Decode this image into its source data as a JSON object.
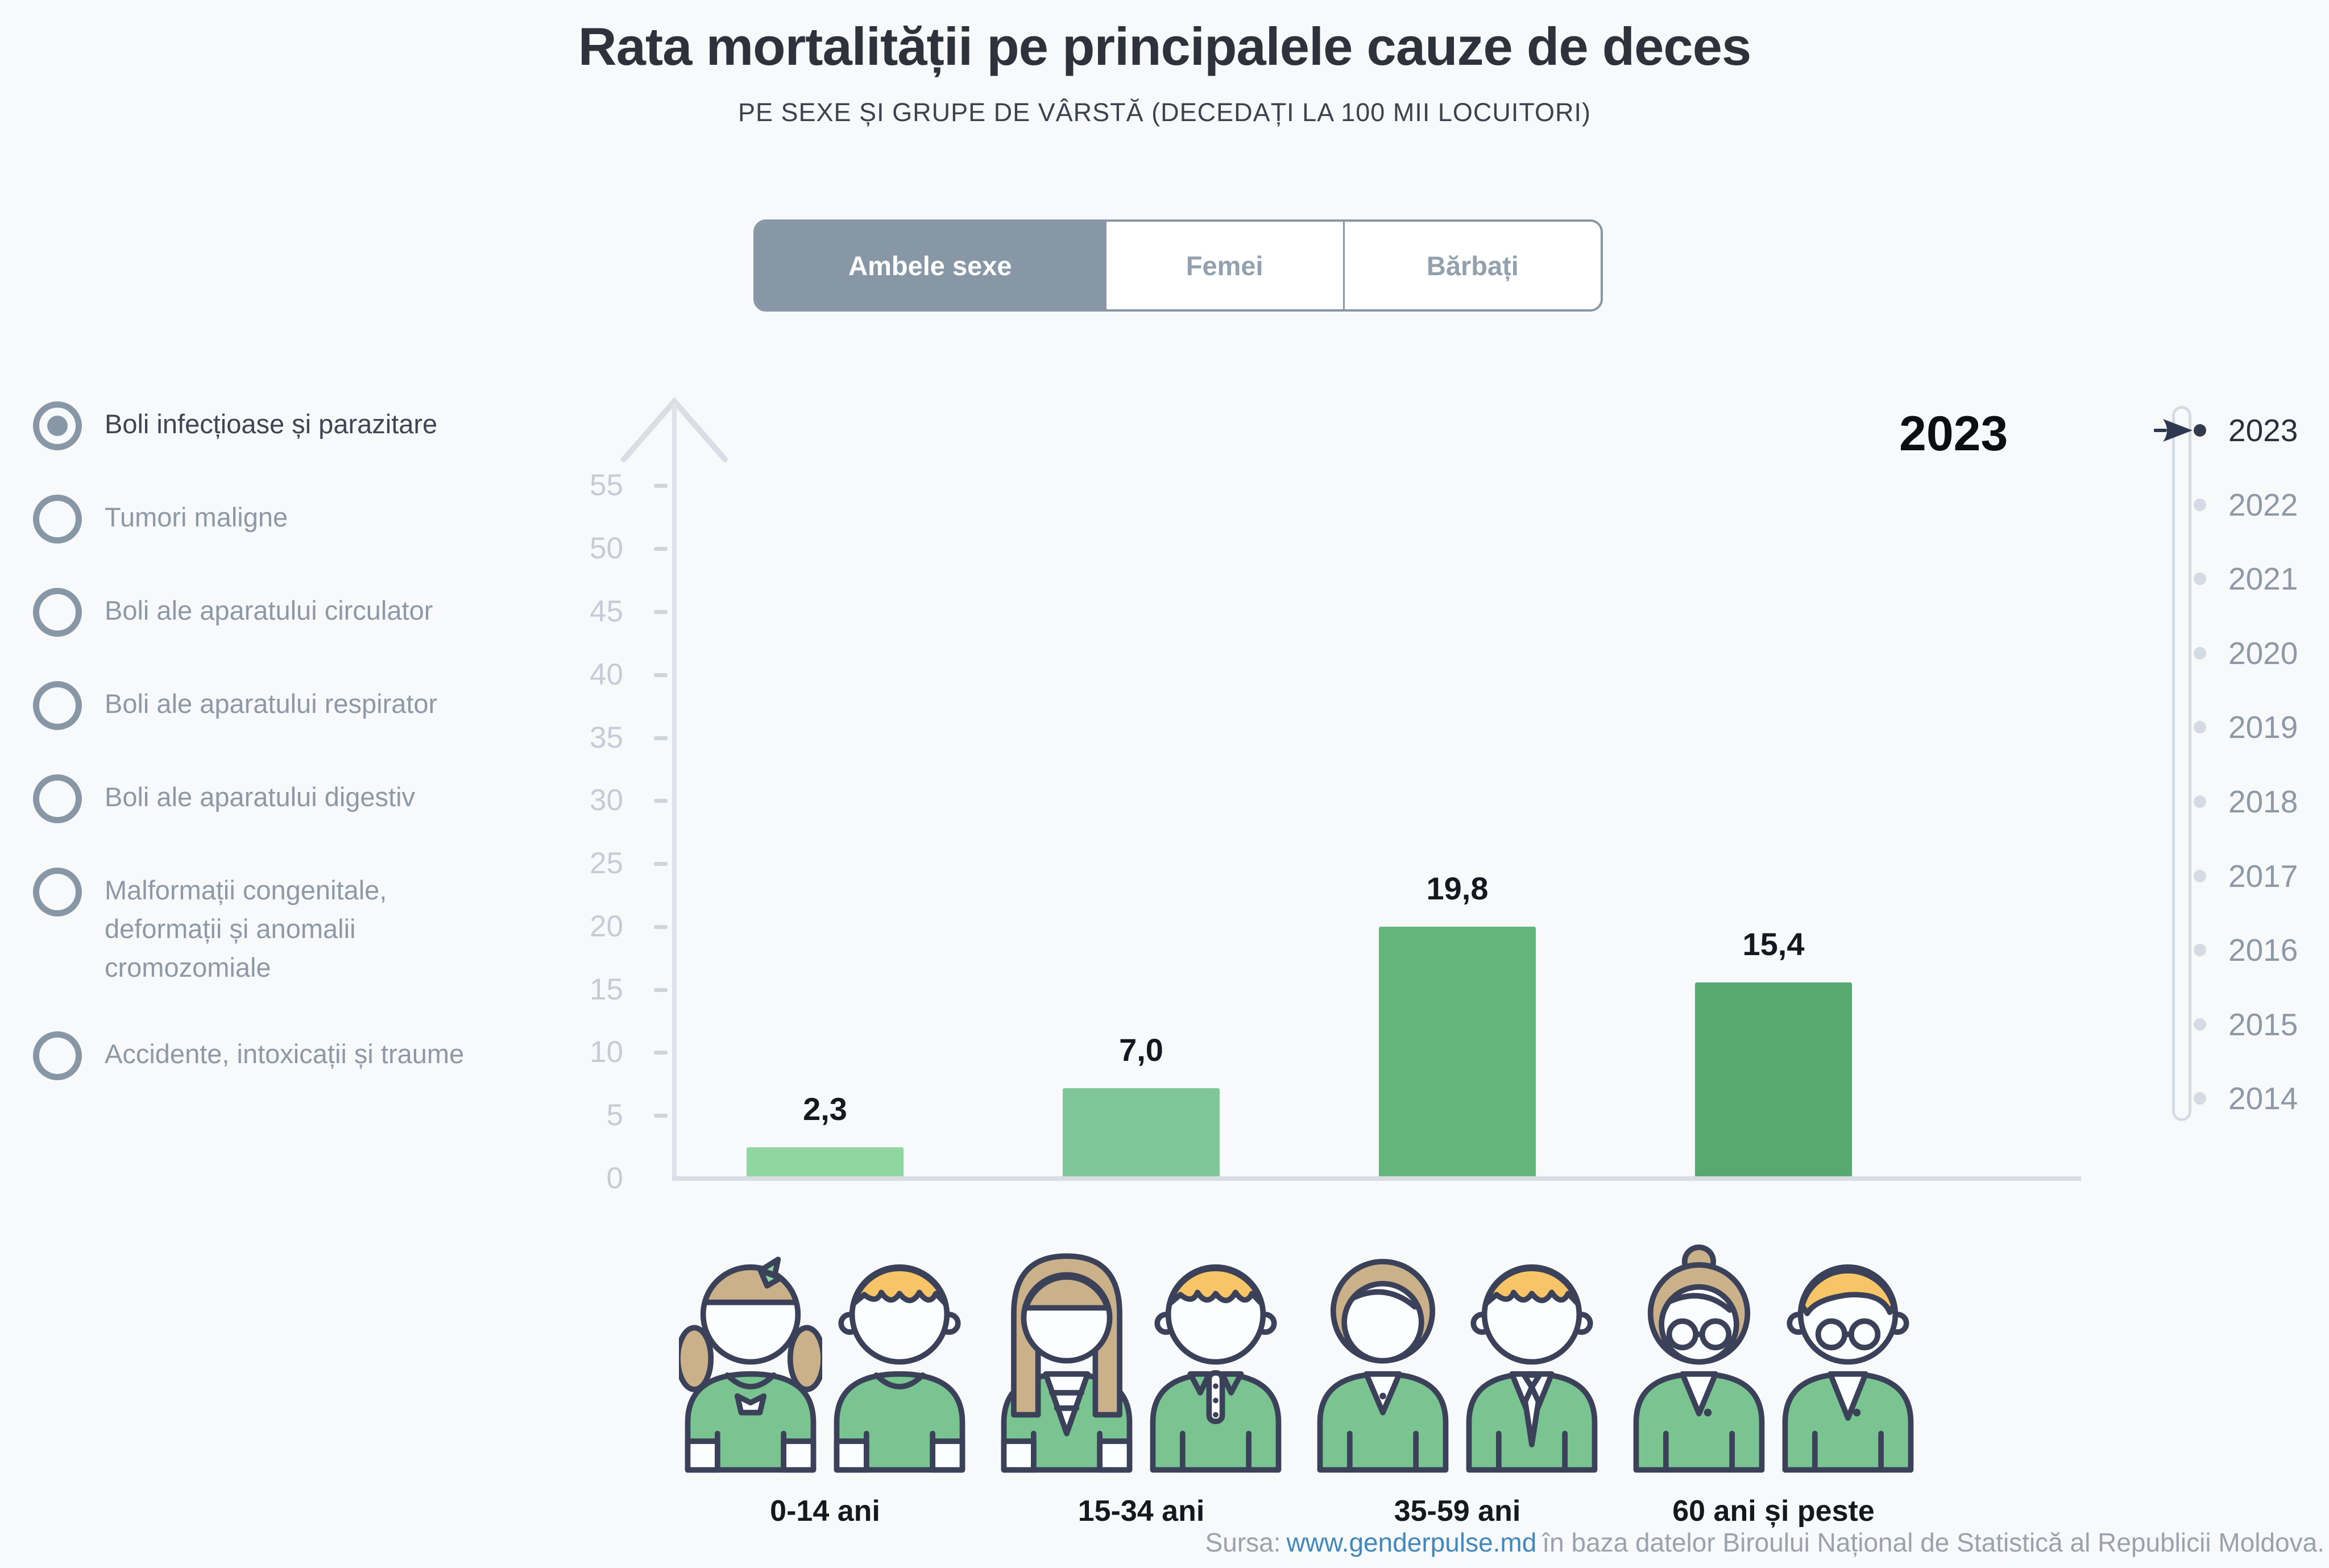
{
  "header": {
    "title": "Rata mortalității pe principalele cauze de deces",
    "subtitle": "PE SEXE ȘI GRUPE DE VÂRSTĂ (DECEDAȚI LA 100 MII LOCUITORI)"
  },
  "sex_tabs": {
    "options": [
      {
        "label": "Ambele sexe",
        "selected": true
      },
      {
        "label": "Femei",
        "selected": false
      },
      {
        "label": "Bărbați",
        "selected": false
      }
    ]
  },
  "causes": {
    "items": [
      {
        "label": "Boli infecțioase și parazitare",
        "selected": true
      },
      {
        "label": "Tumori maligne",
        "selected": false
      },
      {
        "label": "Boli ale aparatului circulator",
        "selected": false
      },
      {
        "label": "Boli ale aparatului respirator",
        "selected": false
      },
      {
        "label": "Boli ale aparatului digestiv",
        "selected": false
      },
      {
        "label": "Malformații congenitale, deformații și anomalii cromozomiale",
        "selected": false
      },
      {
        "label": "Accidente, intoxicații și traume",
        "selected": false
      }
    ]
  },
  "chart_data": {
    "type": "bar",
    "title": "Rata mortalității pe principalele cauze de deces",
    "subtitle": "Pe sexe și grupe de vârstă (decedați la 100 mii locuitori)",
    "cause": "Boli infecțioase și parazitare",
    "sex": "Ambele sexe",
    "year": "2023",
    "categories": [
      "0-14 ani",
      "15-34 ani",
      "35-59 ani",
      "60 ani și peste"
    ],
    "values": [
      2.3,
      7.0,
      19.8,
      15.4
    ],
    "value_labels": [
      "2,3",
      "7,0",
      "19,8",
      "15,4"
    ],
    "bar_colors": [
      "#90d6a0",
      "#7fc699",
      "#63b57c",
      "#57a871"
    ],
    "yticks": [
      0,
      5,
      10,
      15,
      20,
      25,
      30,
      35,
      40,
      45,
      50,
      55
    ],
    "ylim": [
      0,
      57.5
    ],
    "xlabel": "",
    "ylabel": "",
    "grid": false,
    "legend": false
  },
  "big_year_label": "2023",
  "timeline": {
    "selected": "2023",
    "years": [
      "2023",
      "2022",
      "2021",
      "2020",
      "2019",
      "2018",
      "2017",
      "2016",
      "2015",
      "2014"
    ]
  },
  "footer": {
    "prefix": "Sursa:",
    "link": "www.genderpulse.md",
    "suffix": "în baza datelor Biroului Național de Statistică al Republicii Moldova."
  },
  "colors": {
    "background": "#f8f9fa",
    "accent_gray_blue": "#8797a6",
    "axis": "#d7dde3",
    "muted_text": "#8d99a7",
    "selected_text": "#3f4552",
    "link": "#4288ba",
    "outline_navy": "#3a4158",
    "hair_tan": "#cbb189",
    "hair_blond": "#f7c567",
    "shirt_green": "#79c491"
  }
}
